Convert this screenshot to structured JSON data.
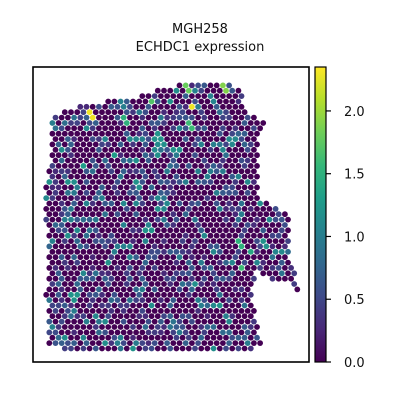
{
  "chart_data": {
    "type": "scatter",
    "subtype": "spatial-hex-spot",
    "title": "MGH258",
    "subtitle": "ECHDC1 expression",
    "xlabel": "",
    "ylabel": "",
    "grid": false,
    "colorbar": {
      "position": "right",
      "range": [
        0.0,
        2.35
      ],
      "ticks": [
        0.0,
        0.5,
        1.0,
        1.5,
        2.0
      ],
      "tick_labels": [
        "0.0",
        "0.5",
        "1.0",
        "1.5",
        "2.0"
      ],
      "colormap": "viridis",
      "stops": [
        "#440154",
        "#482878",
        "#3e4a89",
        "#31688e",
        "#26828e",
        "#1f9e89",
        "#35b779",
        "#6ece58",
        "#b5de2b",
        "#fde725"
      ]
    },
    "background_value": 0.0,
    "highlights": [
      {
        "x": 0.21,
        "y": 0.84,
        "value": 2.3
      },
      {
        "x": 0.58,
        "y": 0.87,
        "value": 2.3
      },
      {
        "x": 0.69,
        "y": 0.93,
        "value": 1.9
      },
      {
        "x": 0.56,
        "y": 0.93,
        "value": 1.8
      },
      {
        "x": 0.37,
        "y": 0.9,
        "value": 1.6
      },
      {
        "x": 0.43,
        "y": 0.88,
        "value": 1.7
      },
      {
        "x": 0.33,
        "y": 0.82,
        "value": 1.5
      },
      {
        "x": 0.57,
        "y": 0.8,
        "value": 1.6
      },
      {
        "x": 0.45,
        "y": 0.76,
        "value": 1.2
      },
      {
        "x": 0.3,
        "y": 0.7,
        "value": 1.3
      },
      {
        "x": 0.52,
        "y": 0.72,
        "value": 1.2
      },
      {
        "x": 0.72,
        "y": 0.75,
        "value": 1.1
      },
      {
        "x": 0.18,
        "y": 0.66,
        "value": 1.3
      },
      {
        "x": 0.6,
        "y": 0.64,
        "value": 1.0
      },
      {
        "x": 0.38,
        "y": 0.6,
        "value": 1.2
      },
      {
        "x": 0.25,
        "y": 0.55,
        "value": 1.0
      },
      {
        "x": 0.48,
        "y": 0.53,
        "value": 1.1
      },
      {
        "x": 0.67,
        "y": 0.57,
        "value": 1.0
      },
      {
        "x": 0.42,
        "y": 0.45,
        "value": 1.2
      },
      {
        "x": 0.12,
        "y": 0.48,
        "value": 1.0
      },
      {
        "x": 0.62,
        "y": 0.43,
        "value": 1.1
      },
      {
        "x": 0.75,
        "y": 0.4,
        "value": 1.5
      },
      {
        "x": 0.79,
        "y": 0.37,
        "value": 1.4
      },
      {
        "x": 0.84,
        "y": 0.4,
        "value": 1.2
      },
      {
        "x": 0.76,
        "y": 0.32,
        "value": 1.6
      },
      {
        "x": 0.3,
        "y": 0.38,
        "value": 1.0
      },
      {
        "x": 0.53,
        "y": 0.35,
        "value": 1.0
      },
      {
        "x": 0.18,
        "y": 0.3,
        "value": 1.1
      },
      {
        "x": 0.15,
        "y": 0.22,
        "value": 1.2
      },
      {
        "x": 0.4,
        "y": 0.25,
        "value": 1.0
      },
      {
        "x": 0.6,
        "y": 0.2,
        "value": 1.0
      },
      {
        "x": 0.5,
        "y": 0.13,
        "value": 0.9
      },
      {
        "x": 0.25,
        "y": 0.14,
        "value": 0.9
      },
      {
        "x": 0.1,
        "y": 0.08,
        "value": 0.8
      },
      {
        "x": 0.7,
        "y": 0.1,
        "value": 0.8
      },
      {
        "x": 0.9,
        "y": 0.3,
        "value": 0.9
      }
    ]
  }
}
